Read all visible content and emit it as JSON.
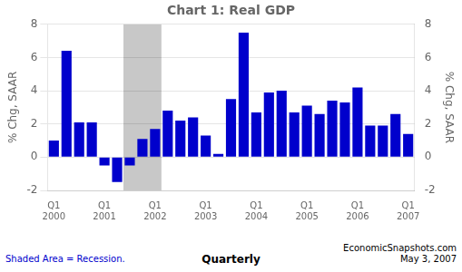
{
  "chart_data": {
    "type": "bar",
    "title": "Chart 1: Real GDP",
    "ylabel": "% Chg, SAAR",
    "y2label": "% Chg, SAAR",
    "categories": [
      "Q1\n2000",
      null,
      null,
      null,
      "Q1\n2001",
      null,
      null,
      null,
      "Q1\n2002",
      null,
      null,
      null,
      "Q1\n2003",
      null,
      null,
      null,
      "Q1\n2004",
      null,
      null,
      null,
      "Q1\n2005",
      null,
      null,
      null,
      "Q1\n2006",
      null,
      null,
      null,
      "Q1\n2007"
    ],
    "values": [
      1.0,
      6.4,
      2.1,
      2.1,
      -0.5,
      -1.5,
      -0.5,
      1.1,
      1.7,
      2.8,
      2.2,
      2.4,
      1.3,
      0.2,
      3.5,
      7.5,
      2.7,
      3.9,
      4.0,
      2.7,
      3.1,
      2.6,
      3.4,
      3.3,
      4.2,
      1.9,
      1.9,
      2.6,
      1.4
    ],
    "color": "#0000CC",
    "ylim": [
      -2,
      8
    ],
    "yticks": [
      -2,
      0,
      2,
      4,
      6,
      8
    ],
    "y2lim": [
      -2,
      8
    ],
    "y2ticks": [
      -2,
      0,
      2,
      4,
      6,
      8
    ],
    "grid": true,
    "shaded_span": {
      "from": 5.5,
      "to": 8.5,
      "color": "#C8C8C8"
    },
    "annotations": [
      {
        "text": "Shaded Area = Recession.",
        "color": "#0000CC"
      },
      {
        "text": "Quarterly",
        "color": "#000000"
      },
      {
        "text": "EconomicSnapshots.com\nMay 3, 2007",
        "color": "#000000"
      }
    ]
  }
}
